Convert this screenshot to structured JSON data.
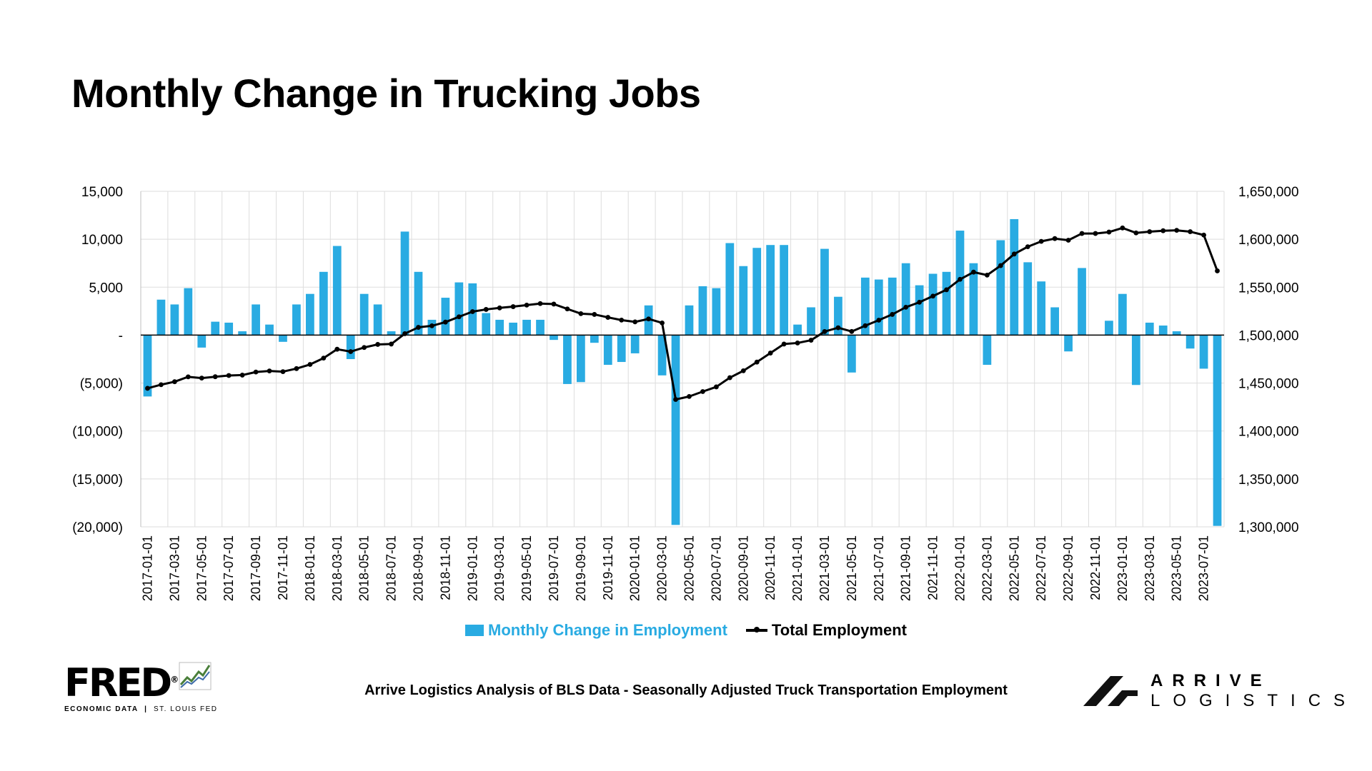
{
  "title": "Monthly Change in Trucking Jobs",
  "chart_data": {
    "type": "bar+line",
    "title": "Monthly Change in Trucking Jobs",
    "x": [
      "2017-01-01",
      "2017-02-01",
      "2017-03-01",
      "2017-04-01",
      "2017-05-01",
      "2017-06-01",
      "2017-07-01",
      "2017-08-01",
      "2017-09-01",
      "2017-10-01",
      "2017-11-01",
      "2017-12-01",
      "2018-01-01",
      "2018-02-01",
      "2018-03-01",
      "2018-04-01",
      "2018-05-01",
      "2018-06-01",
      "2018-07-01",
      "2018-08-01",
      "2018-09-01",
      "2018-10-01",
      "2018-11-01",
      "2018-12-01",
      "2019-01-01",
      "2019-02-01",
      "2019-03-01",
      "2019-04-01",
      "2019-05-01",
      "2019-06-01",
      "2019-07-01",
      "2019-08-01",
      "2019-09-01",
      "2019-10-01",
      "2019-11-01",
      "2019-12-01",
      "2020-01-01",
      "2020-02-01",
      "2020-03-01",
      "2020-04-01",
      "2020-05-01",
      "2020-06-01",
      "2020-07-01",
      "2020-08-01",
      "2020-09-01",
      "2020-10-01",
      "2020-11-01",
      "2020-12-01",
      "2021-01-01",
      "2021-02-01",
      "2021-03-01",
      "2021-04-01",
      "2021-05-01",
      "2021-06-01",
      "2021-07-01",
      "2021-08-01",
      "2021-09-01",
      "2021-10-01",
      "2021-11-01",
      "2021-12-01",
      "2022-01-01",
      "2022-02-01",
      "2022-03-01",
      "2022-04-01",
      "2022-05-01",
      "2022-06-01",
      "2022-07-01",
      "2022-08-01",
      "2022-09-01",
      "2022-10-01",
      "2022-11-01",
      "2022-12-01",
      "2023-01-01",
      "2023-02-01",
      "2023-03-01",
      "2023-04-01",
      "2023-05-01",
      "2023-06-01",
      "2023-07-01",
      "2023-08-01"
    ],
    "x_tick_labels": [
      "2017-01-01",
      "2017-03-01",
      "2017-05-01",
      "2017-07-01",
      "2017-09-01",
      "2017-11-01",
      "2018-01-01",
      "2018-03-01",
      "2018-05-01",
      "2018-07-01",
      "2018-09-01",
      "2018-11-01",
      "2019-01-01",
      "2019-03-01",
      "2019-05-01",
      "2019-07-01",
      "2019-09-01",
      "2019-11-01",
      "2020-01-01",
      "2020-03-01",
      "2020-05-01",
      "2020-07-01",
      "2020-09-01",
      "2020-11-01",
      "2021-01-01",
      "2021-03-01",
      "2021-05-01",
      "2021-07-01",
      "2021-09-01",
      "2021-11-01",
      "2022-01-01",
      "2022-03-01",
      "2022-05-01",
      "2022-07-01",
      "2022-09-01",
      "2022-11-01",
      "2023-01-01",
      "2023-03-01",
      "2023-05-01",
      "2023-07-01"
    ],
    "series": [
      {
        "name": "Monthly Change in Employment",
        "type": "bar",
        "axis": "left",
        "color": "#29ABE2",
        "values": [
          -6400,
          3700,
          3200,
          4900,
          -1300,
          1400,
          1300,
          400,
          3200,
          1100,
          -700,
          3200,
          4300,
          6600,
          9300,
          -2500,
          4300,
          3200,
          400,
          10800,
          6600,
          1600,
          3900,
          5500,
          5400,
          2300,
          1600,
          1300,
          1600,
          1600,
          -500,
          -5100,
          -4900,
          -800,
          -3100,
          -2800,
          -1900,
          3100,
          -4200,
          -19800,
          3100,
          5100,
          4900,
          9600,
          7200,
          9100,
          9400,
          9400,
          1100,
          2900,
          9000,
          4000,
          -3900,
          6000,
          5800,
          6000,
          7500,
          5200,
          6400,
          6600,
          10900,
          7500,
          -3100,
          9900,
          12100,
          7600,
          5600,
          2900,
          -1700,
          7000,
          0,
          1500,
          4300,
          -5200,
          1300,
          1000,
          400,
          -1400,
          -3500,
          -19900
        ]
      },
      {
        "name": "Total Employment",
        "type": "line",
        "axis": "right",
        "color": "#000000",
        "values": [
          1444500,
          1448300,
          1451400,
          1456500,
          1455200,
          1456600,
          1457900,
          1458300,
          1461500,
          1462600,
          1461900,
          1465100,
          1469400,
          1476000,
          1485300,
          1482800,
          1487100,
          1490300,
          1490700,
          1501500,
          1508100,
          1509700,
          1513600,
          1519100,
          1524500,
          1526800,
          1528400,
          1529700,
          1531300,
          1532900,
          1532400,
          1527300,
          1522400,
          1521600,
          1518500,
          1515700,
          1513800,
          1516900,
          1512700,
          1432900,
          1436000,
          1441100,
          1446000,
          1455600,
          1462800,
          1471900,
          1481300,
          1490700,
          1491800,
          1494700,
          1503700,
          1507700,
          1503800,
          1509800,
          1515600,
          1521600,
          1529100,
          1534300,
          1540700,
          1547300,
          1558200,
          1565700,
          1562600,
          1572500,
          1584600,
          1592200,
          1597800,
          1600700,
          1599000,
          1606000,
          1606000,
          1607500,
          1611800,
          1606600,
          1607900,
          1608900,
          1609300,
          1607900,
          1604400,
          1567000
        ]
      }
    ],
    "y_left": {
      "min": -20000,
      "max": 15000,
      "ticks": [
        15000,
        10000,
        5000,
        0,
        -5000,
        -10000,
        -15000,
        -20000
      ],
      "tick_labels": [
        "15,000",
        "10,000",
        "5,000",
        "-",
        "(5,000)",
        "(10,000)",
        "(15,000)",
        "(20,000)"
      ]
    },
    "y_right": {
      "min": 1300000,
      "max": 1650000,
      "ticks": [
        1650000,
        1600000,
        1550000,
        1500000,
        1450000,
        1400000,
        1350000,
        1300000
      ],
      "tick_labels": [
        "1,650,000",
        "1,600,000",
        "1,550,000",
        "1,500,000",
        "1,450,000",
        "1,400,000",
        "1,350,000",
        "1,300,000"
      ]
    },
    "grid": true,
    "legend_position": "bottom-center"
  },
  "legend": {
    "bar_label": "Monthly Change in Employment",
    "line_label": "Total Employment"
  },
  "footer": {
    "note": "Arrive Logistics Analysis of BLS Data - Seasonally Adjusted Truck Transportation Employment"
  },
  "fred_logo": {
    "word": "FRED",
    "registered": "®",
    "sub_left": "ECONOMIC DATA",
    "sub_sep": "|",
    "sub_right": "ST. LOUIS FED"
  },
  "arrive_logo": {
    "line1": "ARRIVE",
    "line2": "LOGISTICS"
  }
}
